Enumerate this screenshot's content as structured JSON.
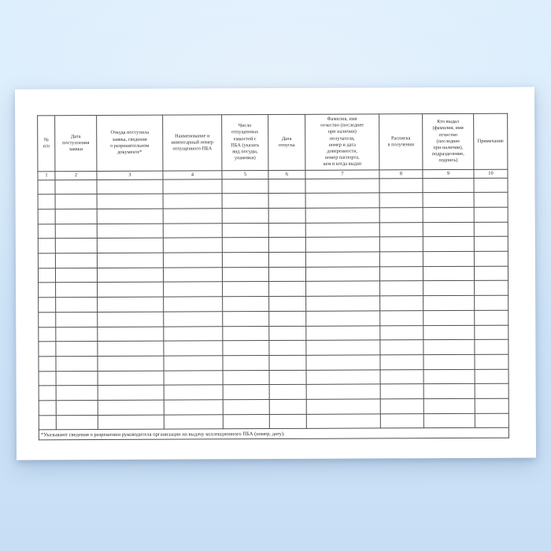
{
  "document": {
    "table": {
      "headers": [
        {
          "num": "1",
          "label": "№\nп/п"
        },
        {
          "num": "2",
          "label": "Дата\nпоступления\nзаявки"
        },
        {
          "num": "3",
          "label": "Откуда поступила\nзаявка, сведения\nо разрешительном\nдокументе*"
        },
        {
          "num": "4",
          "label": "Наименование и\nинвентарный номер\nотпущенного ПБА"
        },
        {
          "num": "5",
          "label": "Число\nотпущенных\nемкостей с\nПБА (указать\nвид посуды,\nупаковки)"
        },
        {
          "num": "6",
          "label": "Дата\nотпуска"
        },
        {
          "num": "7",
          "label": "Фамилия, имя\nотчество (последнее\nпри наличии)\nполучателя,\nномер и дата\nдоверенности,\nномер паспорта,\nкем и когда выдан"
        },
        {
          "num": "8",
          "label": "Расписка\nв получении"
        },
        {
          "num": "9",
          "label": "Кто выдал\n(фамилия, имя\nотчество\n(последнее\nпри наличии),\nподразделение,\nподпись)"
        },
        {
          "num": "10",
          "label": "Примечание"
        }
      ],
      "empty_rows": 17,
      "footnote": "*Указывают сведения о разрешении руководителя организации на выдачу коллекционного ПБА (номер, дату)."
    }
  },
  "colors": {
    "bg_top": "#d9ecfc",
    "bg_bottom": "#c7def5",
    "page_bg": "#ffffff",
    "border": "#4f4f4f",
    "text": "#2b2b2b"
  }
}
